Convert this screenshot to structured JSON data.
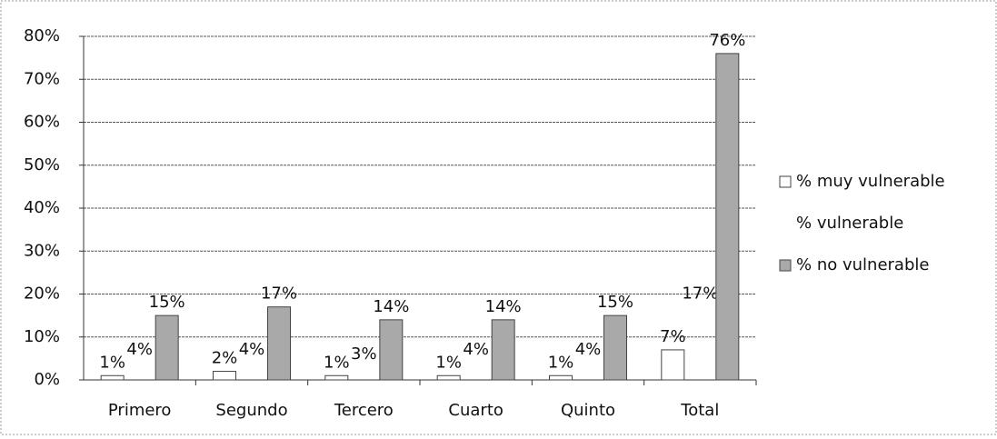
{
  "chart_data": {
    "type": "bar",
    "categories": [
      "Primero",
      "Segundo",
      "Tercero",
      "Cuarto",
      "Quinto",
      "Total"
    ],
    "series": [
      {
        "name": "% muy vulnerable",
        "color": "#ffffff",
        "values": [
          1,
          2,
          1,
          1,
          1,
          7
        ],
        "value_labels": [
          "1%",
          "2%",
          "1%",
          "1%",
          "1%",
          "7%"
        ]
      },
      {
        "name": "% vulnerable",
        "color": "none",
        "values": [
          4,
          4,
          3,
          4,
          4,
          17
        ],
        "value_labels": [
          "4%",
          "4%",
          "3%",
          "4%",
          "4%",
          "17%"
        ]
      },
      {
        "name": "% no vulnerable",
        "color": "#a9a9a9",
        "values": [
          15,
          17,
          14,
          14,
          15,
          76
        ],
        "value_labels": [
          "15%",
          "17%",
          "14%",
          "14%",
          "15%",
          "76%"
        ]
      }
    ],
    "ylim": [
      0,
      80
    ],
    "yticks": [
      {
        "value": 0,
        "label": "0%"
      },
      {
        "value": 10,
        "label": "10%"
      },
      {
        "value": 20,
        "label": "20%"
      },
      {
        "value": 30,
        "label": "30%"
      },
      {
        "value": 40,
        "label": "40%"
      },
      {
        "value": 50,
        "label": "50%"
      },
      {
        "value": 60,
        "label": "60%"
      },
      {
        "value": 70,
        "label": "70%"
      },
      {
        "value": 80,
        "label": "80%"
      }
    ],
    "grid": true,
    "legend": "right"
  }
}
